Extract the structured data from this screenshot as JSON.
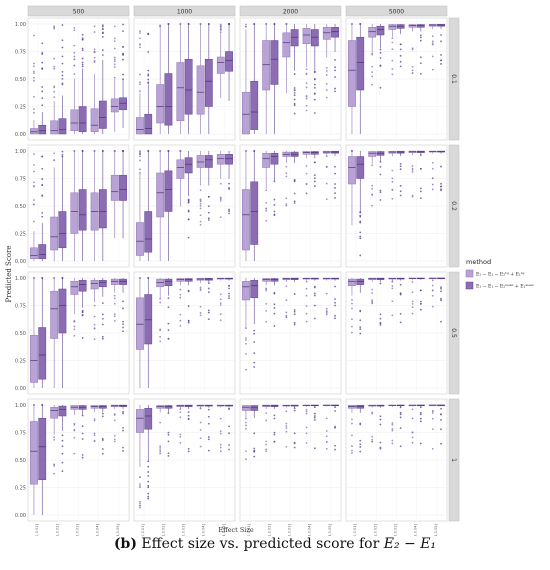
{
  "chart_data": {
    "type": "box",
    "x_label": "Effect Size",
    "y_label": "Predicted Score",
    "y_ticks": [
      "0.00",
      "0.25",
      "0.50",
      "0.75",
      "1.00"
    ],
    "y_range": [
      0,
      1
    ],
    "column_facets": [
      "500",
      "1000",
      "2000",
      "5000"
    ],
    "row_facets": [
      "0.1",
      "0.2",
      "0.5",
      "1"
    ],
    "x_tick_labels": [
      "(0.0,0.01]",
      "(0.01,0.02]",
      "(0.02,0.03]",
      "(0.03,0.04]",
      "(0.04,0.05]"
    ],
    "legend": {
      "title": "method",
      "placement": "right",
      "entries": [
        {
          "label": "E₂ − E₁ − E₂ᵇᵍ + E₁ᵇᵍ",
          "color": "#b9a2d6"
        },
        {
          "label": "E₂ − E₁ − E₂ᵐᵉᵃⁿ + E₁ᵐᵉᵃⁿ",
          "color": "#8c6cb3"
        }
      ]
    },
    "notes": "Each panel has 5 effect-size bins with two boxes each (method 1 light, method 2 dark). Box stats: [q1, median, q3].",
    "panels": {
      "0.1": {
        "500": [
          [
            [
              0.0,
              0.02,
              0.05
            ],
            [
              0.0,
              0.03,
              0.08
            ]
          ],
          [
            [
              0.0,
              0.03,
              0.12
            ],
            [
              0.0,
              0.04,
              0.14
            ]
          ],
          [
            [
              0.03,
              0.1,
              0.22
            ],
            [
              0.02,
              0.1,
              0.25
            ]
          ],
          [
            [
              0.02,
              0.08,
              0.23
            ],
            [
              0.05,
              0.15,
              0.3
            ]
          ],
          [
            [
              0.2,
              0.25,
              0.32
            ],
            [
              0.22,
              0.28,
              0.33
            ]
          ]
        ],
        "1000": [
          [
            [
              0.0,
              0.04,
              0.15
            ],
            [
              0.0,
              0.05,
              0.18
            ]
          ],
          [
            [
              0.1,
              0.25,
              0.45
            ],
            [
              0.08,
              0.25,
              0.55
            ]
          ],
          [
            [
              0.12,
              0.42,
              0.65
            ],
            [
              0.18,
              0.4,
              0.68
            ]
          ],
          [
            [
              0.18,
              0.38,
              0.62
            ],
            [
              0.25,
              0.48,
              0.68
            ]
          ],
          [
            [
              0.55,
              0.65,
              0.7
            ],
            [
              0.57,
              0.67,
              0.75
            ]
          ]
        ],
        "2000": [
          [
            [
              0.0,
              0.18,
              0.38
            ],
            [
              0.04,
              0.2,
              0.48
            ]
          ],
          [
            [
              0.4,
              0.63,
              0.85
            ],
            [
              0.45,
              0.68,
              0.85
            ]
          ],
          [
            [
              0.7,
              0.83,
              0.92
            ],
            [
              0.8,
              0.88,
              0.95
            ]
          ],
          [
            [
              0.82,
              0.9,
              0.96
            ],
            [
              0.8,
              0.88,
              0.95
            ]
          ],
          [
            [
              0.86,
              0.92,
              0.97
            ],
            [
              0.88,
              0.93,
              0.97
            ]
          ]
        ],
        "5000": [
          [
            [
              0.25,
              0.58,
              0.85
            ],
            [
              0.4,
              0.65,
              0.88
            ]
          ],
          [
            [
              0.88,
              0.93,
              0.97
            ],
            [
              0.9,
              0.95,
              0.98
            ]
          ],
          [
            [
              0.95,
              0.98,
              0.995
            ],
            [
              0.96,
              0.98,
              0.995
            ]
          ],
          [
            [
              0.97,
              0.985,
              0.995
            ],
            [
              0.97,
              0.985,
              0.995
            ]
          ],
          [
            [
              0.98,
              0.99,
              0.998
            ],
            [
              0.98,
              0.99,
              0.998
            ]
          ]
        ]
      },
      "0.2": {
        "500": [
          [
            [
              0.02,
              0.05,
              0.12
            ],
            [
              0.02,
              0.06,
              0.15
            ]
          ],
          [
            [
              0.1,
              0.22,
              0.4
            ],
            [
              0.12,
              0.25,
              0.45
            ]
          ],
          [
            [
              0.25,
              0.45,
              0.62
            ],
            [
              0.28,
              0.42,
              0.65
            ]
          ],
          [
            [
              0.28,
              0.45,
              0.62
            ],
            [
              0.3,
              0.45,
              0.65
            ]
          ],
          [
            [
              0.55,
              0.63,
              0.78
            ],
            [
              0.55,
              0.65,
              0.78
            ]
          ]
        ],
        "1000": [
          [
            [
              0.05,
              0.18,
              0.35
            ],
            [
              0.08,
              0.2,
              0.45
            ]
          ],
          [
            [
              0.4,
              0.62,
              0.8
            ],
            [
              0.45,
              0.65,
              0.82
            ]
          ],
          [
            [
              0.75,
              0.85,
              0.92
            ],
            [
              0.8,
              0.88,
              0.94
            ]
          ],
          [
            [
              0.85,
              0.9,
              0.96
            ],
            [
              0.85,
              0.92,
              0.96
            ]
          ],
          [
            [
              0.88,
              0.93,
              0.97
            ],
            [
              0.88,
              0.93,
              0.97
            ]
          ]
        ],
        "2000": [
          [
            [
              0.1,
              0.42,
              0.65
            ],
            [
              0.15,
              0.45,
              0.72
            ]
          ],
          [
            [
              0.85,
              0.93,
              0.98
            ],
            [
              0.88,
              0.95,
              0.98
            ]
          ],
          [
            [
              0.95,
              0.97,
              0.99
            ],
            [
              0.95,
              0.97,
              0.99
            ]
          ],
          [
            [
              0.97,
              0.985,
              0.995
            ],
            [
              0.97,
              0.985,
              0.995
            ]
          ],
          [
            [
              0.98,
              0.99,
              0.998
            ],
            [
              0.98,
              0.99,
              0.998
            ]
          ]
        ],
        "5000": [
          [
            [
              0.7,
              0.85,
              0.95
            ],
            [
              0.75,
              0.88,
              0.95
            ]
          ],
          [
            [
              0.95,
              0.98,
              0.995
            ],
            [
              0.96,
              0.98,
              0.995
            ]
          ],
          [
            [
              0.98,
              0.99,
              0.998
            ],
            [
              0.98,
              0.99,
              0.998
            ]
          ],
          [
            [
              0.985,
              0.993,
              0.999
            ],
            [
              0.985,
              0.993,
              0.999
            ]
          ],
          [
            [
              0.99,
              0.995,
              0.999
            ],
            [
              0.99,
              0.995,
              0.999
            ]
          ]
        ]
      },
      "0.5": {
        "500": [
          [
            [
              0.05,
              0.25,
              0.48
            ],
            [
              0.08,
              0.3,
              0.55
            ]
          ],
          [
            [
              0.45,
              0.72,
              0.88
            ],
            [
              0.5,
              0.75,
              0.9
            ]
          ],
          [
            [
              0.85,
              0.92,
              0.97
            ],
            [
              0.88,
              0.94,
              0.98
            ]
          ],
          [
            [
              0.9,
              0.95,
              0.98
            ],
            [
              0.92,
              0.96,
              0.98
            ]
          ],
          [
            [
              0.94,
              0.97,
              0.99
            ],
            [
              0.94,
              0.97,
              0.99
            ]
          ]
        ],
        "1000": [
          [
            [
              0.35,
              0.58,
              0.82
            ],
            [
              0.4,
              0.62,
              0.85
            ]
          ],
          [
            [
              0.92,
              0.96,
              0.99
            ],
            [
              0.93,
              0.97,
              0.99
            ]
          ],
          [
            [
              0.97,
              0.985,
              0.995
            ],
            [
              0.97,
              0.985,
              0.995
            ]
          ],
          [
            [
              0.98,
              0.99,
              0.998
            ],
            [
              0.98,
              0.99,
              0.998
            ]
          ],
          [
            [
              0.99,
              0.995,
              0.999
            ],
            [
              0.99,
              0.995,
              0.999
            ]
          ]
        ],
        "2000": [
          [
            [
              0.8,
              0.92,
              0.97
            ],
            [
              0.82,
              0.93,
              0.98
            ]
          ],
          [
            [
              0.97,
              0.985,
              0.995
            ],
            [
              0.97,
              0.985,
              0.995
            ]
          ],
          [
            [
              0.985,
              0.993,
              0.999
            ],
            [
              0.985,
              0.993,
              0.999
            ]
          ],
          [
            [
              0.99,
              0.995,
              0.999
            ],
            [
              0.99,
              0.995,
              0.999
            ]
          ],
          [
            [
              0.99,
              0.996,
              0.999
            ],
            [
              0.99,
              0.996,
              0.999
            ]
          ]
        ],
        "5000": [
          [
            [
              0.93,
              0.97,
              0.99
            ],
            [
              0.94,
              0.97,
              0.99
            ]
          ],
          [
            [
              0.985,
              0.993,
              0.999
            ],
            [
              0.985,
              0.993,
              0.999
            ]
          ],
          [
            [
              0.99,
              0.996,
              0.999
            ],
            [
              0.99,
              0.996,
              0.999
            ]
          ],
          [
            [
              0.993,
              0.997,
              1.0
            ],
            [
              0.993,
              0.997,
              1.0
            ]
          ],
          [
            [
              0.995,
              0.998,
              1.0
            ],
            [
              0.995,
              0.998,
              1.0
            ]
          ]
        ]
      },
      "1": {
        "500": [
          [
            [
              0.28,
              0.58,
              0.85
            ],
            [
              0.32,
              0.62,
              0.88
            ]
          ],
          [
            [
              0.88,
              0.95,
              0.98
            ],
            [
              0.9,
              0.96,
              0.99
            ]
          ],
          [
            [
              0.96,
              0.98,
              0.995
            ],
            [
              0.96,
              0.98,
              0.995
            ]
          ],
          [
            [
              0.97,
              0.985,
              0.995
            ],
            [
              0.97,
              0.985,
              0.995
            ]
          ],
          [
            [
              0.985,
              0.993,
              0.999
            ],
            [
              0.985,
              0.993,
              0.999
            ]
          ]
        ],
        "1000": [
          [
            [
              0.75,
              0.88,
              0.96
            ],
            [
              0.78,
              0.9,
              0.97
            ]
          ],
          [
            [
              0.97,
              0.985,
              0.995
            ],
            [
              0.97,
              0.985,
              0.995
            ]
          ],
          [
            [
              0.985,
              0.993,
              0.999
            ],
            [
              0.985,
              0.993,
              0.999
            ]
          ],
          [
            [
              0.99,
              0.995,
              0.999
            ],
            [
              0.99,
              0.995,
              0.999
            ]
          ],
          [
            [
              0.99,
              0.996,
              0.999
            ],
            [
              0.99,
              0.996,
              0.999
            ]
          ]
        ],
        "2000": [
          [
            [
              0.95,
              0.98,
              0.995
            ],
            [
              0.95,
              0.98,
              0.995
            ]
          ],
          [
            [
              0.985,
              0.993,
              0.999
            ],
            [
              0.985,
              0.993,
              0.999
            ]
          ],
          [
            [
              0.99,
              0.996,
              0.999
            ],
            [
              0.99,
              0.996,
              0.999
            ]
          ],
          [
            [
              0.993,
              0.997,
              1.0
            ],
            [
              0.993,
              0.997,
              1.0
            ]
          ],
          [
            [
              0.995,
              0.998,
              1.0
            ],
            [
              0.995,
              0.998,
              1.0
            ]
          ]
        ],
        "5000": [
          [
            [
              0.97,
              0.985,
              0.998
            ],
            [
              0.97,
              0.985,
              0.998
            ]
          ],
          [
            [
              0.99,
              0.995,
              0.999
            ],
            [
              0.99,
              0.995,
              0.999
            ]
          ],
          [
            [
              0.993,
              0.997,
              1.0
            ],
            [
              0.993,
              0.997,
              1.0
            ]
          ],
          [
            [
              0.995,
              0.998,
              1.0
            ],
            [
              0.995,
              0.998,
              1.0
            ]
          ],
          [
            [
              0.996,
              0.999,
              1.0
            ],
            [
              0.996,
              0.999,
              1.0
            ]
          ]
        ]
      }
    }
  },
  "caption": {
    "label": "(b)",
    "text": " Effect size vs. predicted score for ",
    "formula": "E₂ − E₁"
  }
}
